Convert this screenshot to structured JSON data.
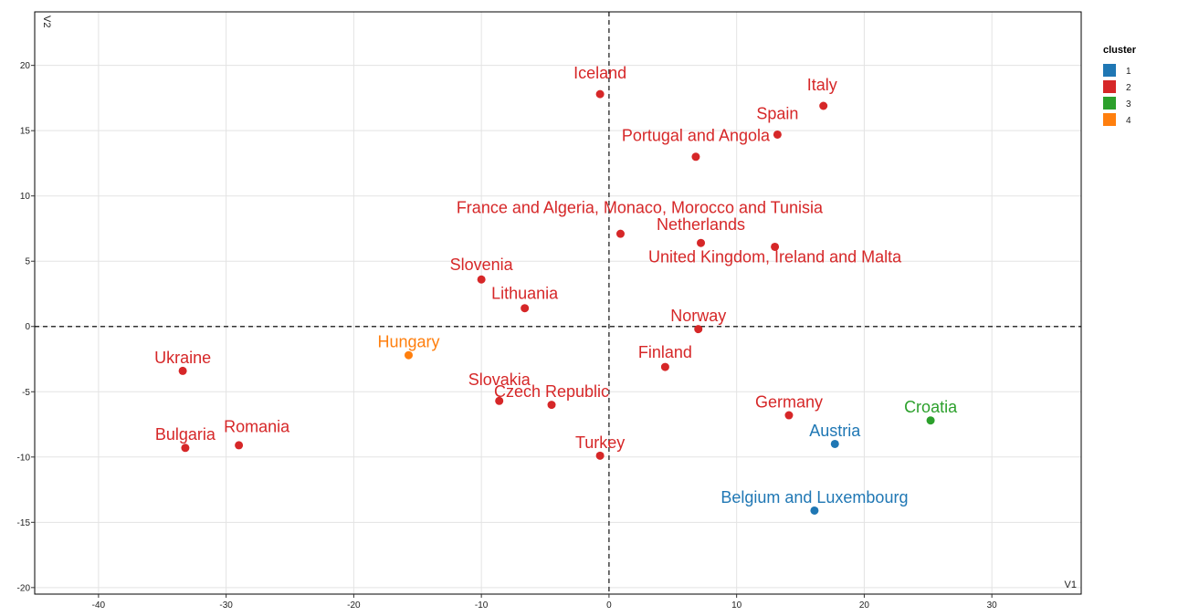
{
  "chart_data": {
    "type": "scatter",
    "xlabel": "V1",
    "ylabel": "V2",
    "xlim": [
      -45,
      37
    ],
    "ylim": [
      -20.5,
      24.1
    ],
    "x_ticks": [
      -40,
      -30,
      -20,
      -10,
      0,
      10,
      20,
      30
    ],
    "y_ticks": [
      -20,
      -15,
      -10,
      -5,
      0,
      5,
      10,
      15,
      20
    ],
    "x_tick_labels": [
      "-40",
      "-30",
      "-20",
      "-10",
      "0",
      "10",
      "20",
      "30"
    ],
    "y_tick_labels": [
      "-20",
      "-15",
      "-10",
      "-5",
      "0",
      "5",
      "10",
      "15",
      "20"
    ],
    "grid": true,
    "reference_lines": {
      "x": 0,
      "y": 0,
      "style": "dashed"
    },
    "legend": {
      "title": "cluster",
      "position": "right",
      "entries": [
        {
          "label": "1",
          "color": "#1f77b4"
        },
        {
          "label": "2",
          "color": "#d62728"
        },
        {
          "label": "3",
          "color": "#2ca02c"
        },
        {
          "label": "4",
          "color": "#ff7f0e"
        }
      ]
    },
    "points": [
      {
        "label": "Iceland",
        "x": -0.7,
        "y": 17.8,
        "cluster": "2",
        "label_dx": 0,
        "label_dy": 1.2,
        "anchor": "middle"
      },
      {
        "label": "Italy",
        "x": 16.8,
        "y": 16.9,
        "cluster": "2",
        "label_dx": -0.1,
        "label_dy": 1.2,
        "anchor": "middle"
      },
      {
        "label": "Spain",
        "x": 13.2,
        "y": 14.7,
        "cluster": "2",
        "label_dx": 0,
        "label_dy": 1.2,
        "anchor": "middle"
      },
      {
        "label": "Portugal and Angola",
        "x": 6.8,
        "y": 13.0,
        "cluster": "2",
        "label_dx": 0,
        "label_dy": 1.2,
        "anchor": "middle"
      },
      {
        "label": "France and Algeria, Monaco, Morocco and Tunisia",
        "x": 0.9,
        "y": 7.1,
        "cluster": "2",
        "label_dx": 1.5,
        "label_dy": 1.6,
        "anchor": "middle"
      },
      {
        "label": "Netherlands",
        "x": 7.2,
        "y": 6.4,
        "cluster": "2",
        "label_dx": 0,
        "label_dy": 1.0,
        "anchor": "middle"
      },
      {
        "label": "United Kingdom, Ireland and Malta",
        "x": 13.0,
        "y": 6.1,
        "cluster": "2",
        "label_dx": 0,
        "label_dy": -1.2,
        "anchor": "middle"
      },
      {
        "label": "Slovenia",
        "x": -10.0,
        "y": 3.6,
        "cluster": "2",
        "label_dx": 0,
        "label_dy": 0.7,
        "anchor": "middle"
      },
      {
        "label": "Lithuania",
        "x": -6.6,
        "y": 1.4,
        "cluster": "2",
        "label_dx": 0,
        "label_dy": 0.7,
        "anchor": "middle"
      },
      {
        "label": "Norway",
        "x": 7.0,
        "y": -0.2,
        "cluster": "2",
        "label_dx": 0,
        "label_dy": 0.6,
        "anchor": "middle"
      },
      {
        "label": "Ukraine",
        "x": -33.4,
        "y": -3.4,
        "cluster": "2",
        "label_dx": 0,
        "label_dy": 0.6,
        "anchor": "middle"
      },
      {
        "label": "Hungary",
        "x": -15.7,
        "y": -2.2,
        "cluster": "4",
        "label_dx": 0,
        "label_dy": 0.6,
        "anchor": "middle"
      },
      {
        "label": "Finland",
        "x": 4.4,
        "y": -3.1,
        "cluster": "2",
        "label_dx": 0,
        "label_dy": 0.7,
        "anchor": "middle"
      },
      {
        "label": "Slovakia",
        "x": -8.6,
        "y": -5.7,
        "cluster": "2",
        "label_dx": 0,
        "label_dy": 1.2,
        "anchor": "middle"
      },
      {
        "label": "Czech Republic",
        "x": -4.5,
        "y": -6.0,
        "cluster": "2",
        "label_dx": 0,
        "label_dy": 0.6,
        "anchor": "middle"
      },
      {
        "label": "Germany",
        "x": 14.1,
        "y": -6.8,
        "cluster": "2",
        "label_dx": 0,
        "label_dy": 0.6,
        "anchor": "middle"
      },
      {
        "label": "Croatia",
        "x": 25.2,
        "y": -7.2,
        "cluster": "3",
        "label_dx": 0,
        "label_dy": 0.6,
        "anchor": "middle"
      },
      {
        "label": "Austria",
        "x": 17.7,
        "y": -9.0,
        "cluster": "1",
        "label_dx": 0,
        "label_dy": 0.6,
        "anchor": "middle"
      },
      {
        "label": "Romania",
        "x": -29.0,
        "y": -9.1,
        "cluster": "2",
        "label_dx": 1.4,
        "label_dy": 1.0,
        "anchor": "middle"
      },
      {
        "label": "Bulgaria",
        "x": -33.2,
        "y": -9.3,
        "cluster": "2",
        "label_dx": 0,
        "label_dy": 0.6,
        "anchor": "middle"
      },
      {
        "label": "Turkey",
        "x": -0.7,
        "y": -9.9,
        "cluster": "2",
        "label_dx": 0,
        "label_dy": 0.6,
        "anchor": "middle"
      },
      {
        "label": "Belgium and Luxembourg",
        "x": 16.1,
        "y": -14.1,
        "cluster": "1",
        "label_dx": 0,
        "label_dy": 0.6,
        "anchor": "middle"
      }
    ]
  }
}
